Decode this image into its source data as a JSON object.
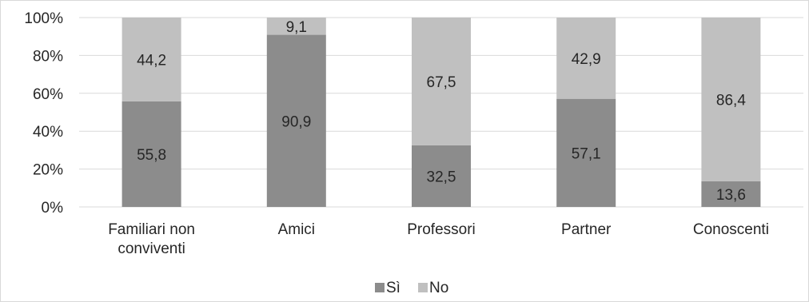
{
  "chart_data": {
    "type": "bar",
    "stacked": true,
    "percent_stacked": true,
    "categories": [
      [
        "Familiari non",
        "conviventi"
      ],
      [
        "Amici"
      ],
      [
        "Professori"
      ],
      [
        "Partner"
      ],
      [
        "Conoscenti"
      ]
    ],
    "series": [
      {
        "name": "Sì",
        "values": [
          55.8,
          90.9,
          32.5,
          57.1,
          13.6
        ],
        "labels": [
          "55,8",
          "90,9",
          "32,5",
          "57,1",
          "13,6"
        ],
        "color": "#8c8c8c"
      },
      {
        "name": "No",
        "values": [
          44.2,
          9.1,
          67.5,
          42.9,
          86.4
        ],
        "labels": [
          "44,2",
          "9,1",
          "67,5",
          "42,9",
          "86,4"
        ],
        "color": "#c0c0c0"
      }
    ],
    "yticks": [
      "0%",
      "20%",
      "40%",
      "60%",
      "80%",
      "100%"
    ],
    "ylim": [
      0,
      100
    ],
    "grid": true,
    "gridline_color": "#d9d9d9",
    "legend_position": "bottom"
  }
}
